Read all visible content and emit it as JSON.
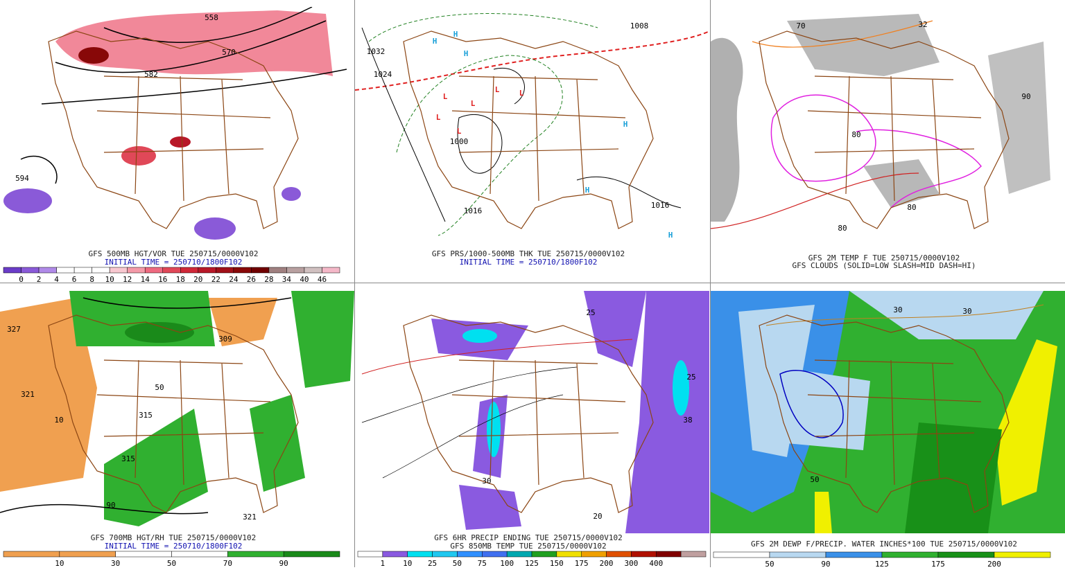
{
  "panels": [
    {
      "caption": [
        "GFS 500MB HGT/VOR TUE 250715/0000V102",
        "INITIAL TIME = 250710/1800F102"
      ],
      "colorbar": {
        "labels": [
          0,
          2,
          4,
          6,
          8,
          10,
          12,
          14,
          16,
          18,
          20,
          22,
          24,
          26,
          28,
          34,
          40,
          46
        ],
        "colors": [
          "#6a3cc8",
          "#8a5ad8",
          "#b08ae8",
          "#ffffff",
          "#ffffff",
          "#ffffff",
          "#f8c8d0",
          "#f49aa8",
          "#ee6a80",
          "#e04858",
          "#d02838",
          "#b81828",
          "#a01018",
          "#880808",
          "#700000",
          "#a08080",
          "#b8a0a0",
          "#d0c0c0",
          "#f4b8c8"
        ]
      },
      "contour_labels": [
        "558",
        "570",
        "582",
        "594"
      ]
    },
    {
      "caption": [
        "GFS PRS/1000-500MB THK TUE 250715/0000V102",
        "INITIAL TIME = 250710/1800F102"
      ],
      "contour_labels": [
        "1032",
        "1024",
        "1008",
        "1000",
        "1016",
        "1016",
        "H",
        "H",
        "H",
        "H",
        "H",
        "H",
        "L",
        "L",
        "L",
        "L",
        "L",
        "L"
      ]
    },
    {
      "caption": [
        "GFS 2M TEMP F TUE 250715/0000V102",
        "GFS CLOUDS (SOLID=LOW SLASH=MID DASH=HI)"
      ],
      "contour_labels": [
        "32",
        "70",
        "80",
        "80",
        "90",
        "80"
      ]
    },
    {
      "caption": [
        "GFS 700MB HGT/RH TUE 250715/0000V102",
        "INITIAL TIME = 250710/1800F102"
      ],
      "colorbar": {
        "labels": [
          10,
          30,
          50,
          70,
          90
        ],
        "colors": [
          "#f0a050",
          "#f0a050",
          "#ffffff",
          "#ffffff",
          "#30b030",
          "#1a8a1a"
        ]
      },
      "contour_labels": [
        "327",
        "321",
        "309",
        "315",
        "315",
        "321",
        "50",
        "90",
        "10"
      ]
    },
    {
      "caption": [
        "GFS 6HR PRECIP ENDING TUE 250715/0000V102",
        "GFS 850MB TEMP TUE 250715/0000V102"
      ],
      "colorbar": {
        "labels": [
          1,
          10,
          25,
          50,
          75,
          100,
          125,
          150,
          175,
          200,
          300,
          400
        ],
        "colors": [
          "#ffffff",
          "#8a5ae0",
          "#00e0f0",
          "#20c8f0",
          "#3090ff",
          "#4070f0",
          "#00a8b0",
          "#20a020",
          "#f0e000",
          "#f0a000",
          "#e05000",
          "#b01000",
          "#800000",
          "#c0a0a0"
        ]
      },
      "contour_labels": [
        "25",
        "38",
        "20",
        "30",
        "25"
      ]
    },
    {
      "caption": [
        "GFS 2M DEWP F/PRECIP. WATER INCHES*100 TUE 250715/0000V102"
      ],
      "colorbar": {
        "labels": [
          50,
          90,
          125,
          175,
          200
        ],
        "colors": [
          "#ffffff",
          "#b8d8f0",
          "#3a90e8",
          "#30b030",
          "#189018",
          "#f0f000"
        ]
      },
      "contour_labels": [
        "30",
        "50",
        "30"
      ]
    }
  ]
}
